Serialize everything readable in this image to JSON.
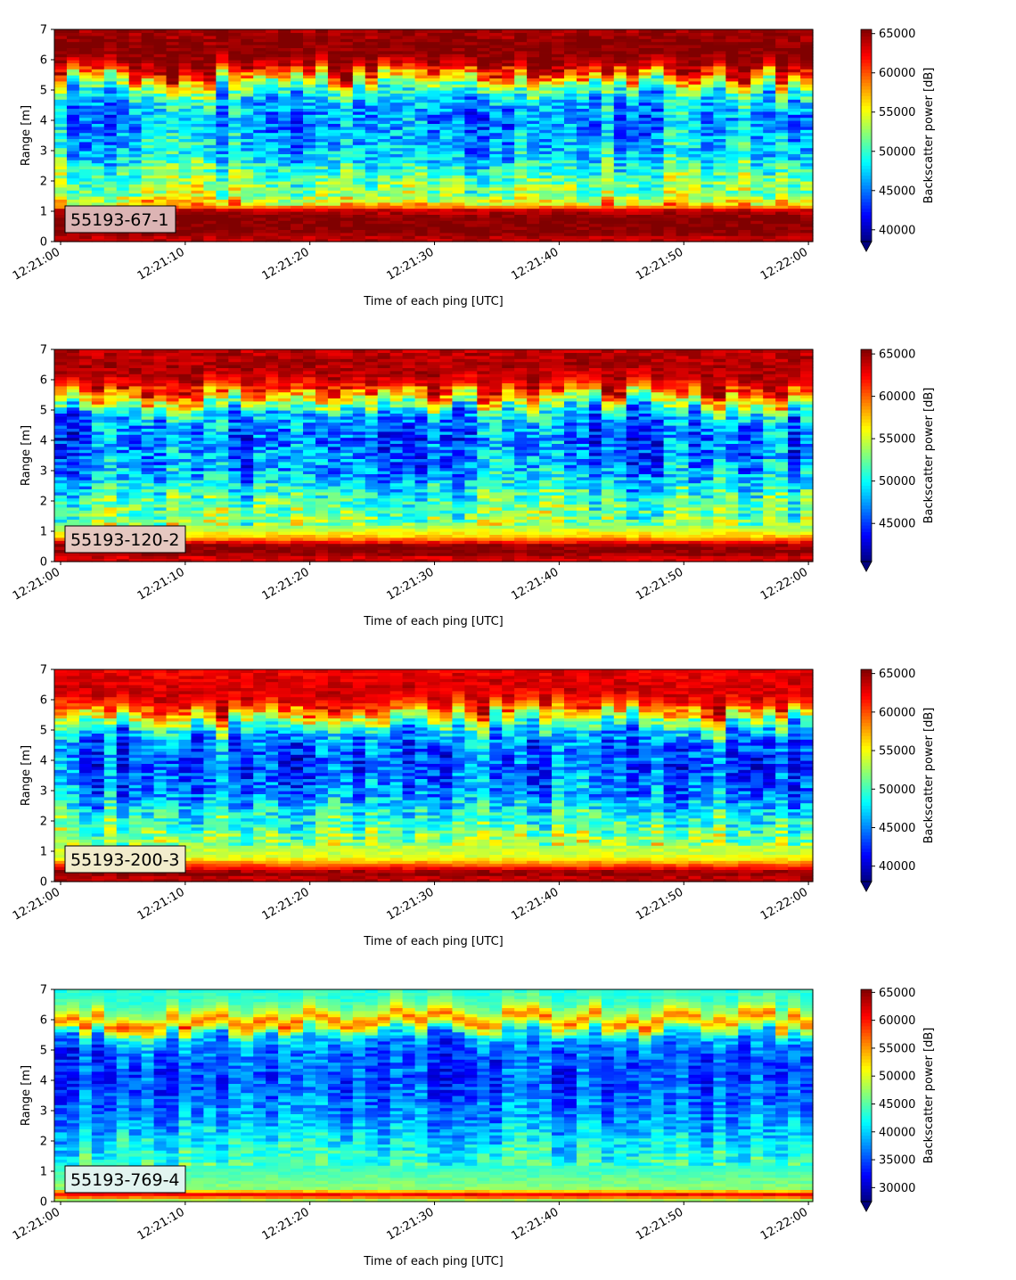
{
  "chart_data": [
    {
      "type": "heatmap",
      "label": "55193-67-1",
      "xlabel": "Time of each ping [UTC]",
      "ylabel": "Range [m]",
      "colorbar_label": "Backscatter power [dB]",
      "colormap": "jet",
      "xlim": [
        "12:21:00",
        "12:22:00"
      ],
      "x_ticks": [
        "12:21:00",
        "12:21:10",
        "12:21:20",
        "12:21:30",
        "12:21:40",
        "12:21:50",
        "12:22:00"
      ],
      "ylim": [
        0,
        7
      ],
      "y_ticks": [
        "0",
        "1",
        "2",
        "3",
        "4",
        "5",
        "6",
        "7"
      ],
      "clim": [
        38500,
        65535
      ],
      "colorbar_ticks": [
        "40000",
        "45000",
        "50000",
        "55000",
        "60000",
        "65000"
      ],
      "colorbar_extend": "min",
      "label_box_color": "#dcb4b4",
      "profile": [
        {
          "range_m": 0.15,
          "value": 64000
        },
        {
          "range_m": 0.3,
          "value": 65535
        },
        {
          "range_m": 0.8,
          "value": 65535
        },
        {
          "range_m": 1.05,
          "value": 63500
        },
        {
          "range_m": 1.2,
          "value": 57000
        },
        {
          "range_m": 1.6,
          "value": 52500
        },
        {
          "range_m": 2.0,
          "value": 52000
        },
        {
          "range_m": 3.0,
          "value": 47500
        },
        {
          "range_m": 4.0,
          "value": 46000
        },
        {
          "range_m": 4.7,
          "value": 47500
        },
        {
          "range_m": 5.2,
          "value": 53000
        },
        {
          "range_m": 5.6,
          "value": 61500
        },
        {
          "range_m": 6.0,
          "value": 65000
        },
        {
          "range_m": 6.5,
          "value": 65535
        },
        {
          "range_m": 7.0,
          "value": 64500
        }
      ]
    },
    {
      "type": "heatmap",
      "label": "55193-120-2",
      "xlabel": "Time of each ping [UTC]",
      "ylabel": "Range [m]",
      "colorbar_label": "Backscatter power [dB]",
      "colormap": "jet",
      "xlim": [
        "12:21:00",
        "12:22:00"
      ],
      "x_ticks": [
        "12:21:00",
        "12:21:10",
        "12:21:20",
        "12:21:30",
        "12:21:40",
        "12:21:50",
        "12:22:00"
      ],
      "ylim": [
        0,
        7
      ],
      "y_ticks": [
        "0",
        "1",
        "2",
        "3",
        "4",
        "5",
        "6",
        "7"
      ],
      "clim": [
        40500,
        65535
      ],
      "colorbar_ticks": [
        "45000",
        "50000",
        "55000",
        "60000",
        "65000"
      ],
      "colorbar_extend": "min",
      "label_box_color": "#e6c8c0",
      "profile": [
        {
          "range_m": 0.15,
          "value": 63500
        },
        {
          "range_m": 0.3,
          "value": 65535
        },
        {
          "range_m": 0.55,
          "value": 65000
        },
        {
          "range_m": 0.8,
          "value": 58000
        },
        {
          "range_m": 1.2,
          "value": 53500
        },
        {
          "range_m": 2.0,
          "value": 51500
        },
        {
          "range_m": 3.0,
          "value": 47500
        },
        {
          "range_m": 4.0,
          "value": 46000
        },
        {
          "range_m": 4.8,
          "value": 47500
        },
        {
          "range_m": 5.3,
          "value": 55000
        },
        {
          "range_m": 5.7,
          "value": 61500
        },
        {
          "range_m": 6.2,
          "value": 64500
        },
        {
          "range_m": 7.0,
          "value": 64000
        }
      ]
    },
    {
      "type": "heatmap",
      "label": "55193-200-3",
      "xlabel": "Time of each ping [UTC]",
      "ylabel": "Range [m]",
      "colorbar_label": "Backscatter power [dB]",
      "colormap": "jet",
      "xlim": [
        "12:21:00",
        "12:22:00"
      ],
      "x_ticks": [
        "12:21:00",
        "12:21:10",
        "12:21:20",
        "12:21:30",
        "12:21:40",
        "12:21:50",
        "12:22:00"
      ],
      "ylim": [
        0,
        7
      ],
      "y_ticks": [
        "0",
        "1",
        "2",
        "3",
        "4",
        "5",
        "6",
        "7"
      ],
      "clim": [
        38000,
        65535
      ],
      "colorbar_ticks": [
        "40000",
        "45000",
        "50000",
        "55000",
        "60000",
        "65000"
      ],
      "colorbar_extend": "min",
      "label_box_color": "#f2eccc",
      "profile": [
        {
          "range_m": 0.15,
          "value": 64000
        },
        {
          "range_m": 0.3,
          "value": 65535
        },
        {
          "range_m": 0.45,
          "value": 62000
        },
        {
          "range_m": 0.8,
          "value": 54500
        },
        {
          "range_m": 1.5,
          "value": 52000
        },
        {
          "range_m": 2.2,
          "value": 49000
        },
        {
          "range_m": 3.0,
          "value": 45000
        },
        {
          "range_m": 4.0,
          "value": 43500
        },
        {
          "range_m": 4.8,
          "value": 45500
        },
        {
          "range_m": 5.3,
          "value": 52500
        },
        {
          "range_m": 5.7,
          "value": 60000
        },
        {
          "range_m": 6.2,
          "value": 63500
        },
        {
          "range_m": 7.0,
          "value": 62500
        }
      ]
    },
    {
      "type": "heatmap",
      "label": "55193-769-4",
      "xlabel": "Time of each ping [UTC]",
      "ylabel": "Range [m]",
      "colorbar_label": "Backscatter power [dB]",
      "colormap": "jet",
      "xlim": [
        "12:21:00",
        "12:22:00"
      ],
      "x_ticks": [
        "12:21:00",
        "12:21:10",
        "12:21:20",
        "12:21:30",
        "12:21:40",
        "12:21:50",
        "12:22:00"
      ],
      "ylim": [
        0,
        7
      ],
      "y_ticks": [
        "0",
        "1",
        "2",
        "3",
        "4",
        "5",
        "6",
        "7"
      ],
      "clim": [
        27500,
        65535
      ],
      "colorbar_ticks": [
        "30000",
        "35000",
        "40000",
        "45000",
        "50000",
        "55000",
        "60000",
        "65000"
      ],
      "colorbar_extend": "min",
      "label_box_color": "#e2f4f0",
      "profile": [
        {
          "range_m": 0.1,
          "value": 48000
        },
        {
          "range_m": 0.2,
          "value": 65000
        },
        {
          "range_m": 0.3,
          "value": 57000
        },
        {
          "range_m": 0.45,
          "value": 47000
        },
        {
          "range_m": 1.0,
          "value": 44500
        },
        {
          "range_m": 2.0,
          "value": 41000
        },
        {
          "range_m": 3.0,
          "value": 37000
        },
        {
          "range_m": 4.0,
          "value": 35000
        },
        {
          "range_m": 5.0,
          "value": 35500
        },
        {
          "range_m": 5.5,
          "value": 40000
        },
        {
          "range_m": 5.8,
          "value": 51000
        },
        {
          "range_m": 6.0,
          "value": 57000
        },
        {
          "range_m": 6.3,
          "value": 48000
        },
        {
          "range_m": 6.7,
          "value": 44000
        },
        {
          "range_m": 7.0,
          "value": 43000
        }
      ]
    }
  ]
}
